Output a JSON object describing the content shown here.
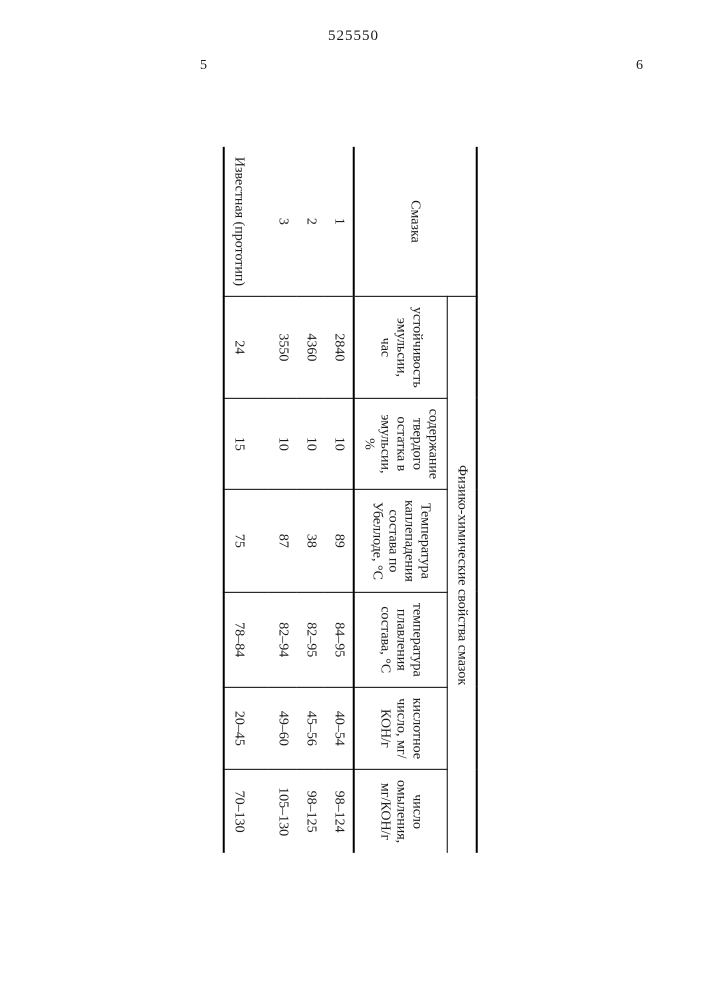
{
  "meta": {
    "doc_number": "525550",
    "col_left": "5",
    "col_right": "6"
  },
  "style": {
    "background_color": "#ffffff",
    "text_color": "#1a1a1a",
    "rule_color": "#000000",
    "font_family": "Times New Roman",
    "body_fontsize_pt": 11,
    "header_fontsize_pt": 11,
    "rotation_deg": 90
  },
  "table": {
    "type": "table",
    "headers": {
      "sample": "Смазка",
      "group": "Физико-химические свойства смазок",
      "stability": "устойчивость эмульсии, час",
      "solid_residue": "содержание твердого остатка в эмульсии, %",
      "dropping_point": "Температура каплепадения состава по Убеллоде, °C",
      "melting_point": "температура плавления состава, °C",
      "acid_number": "кислотное число, мг/КОН/г",
      "sapon_number": "число омыления, мг/КОН/г"
    },
    "columns": [
      "sample",
      "stability",
      "solid_residue",
      "dropping_point",
      "melting_point",
      "acid_number",
      "sapon_number"
    ],
    "rows": [
      {
        "sample": "1",
        "stability": "2840",
        "solid_residue": "10",
        "dropping_point": "89",
        "melting_point": "84–95",
        "acid_number": "40–54",
        "sapon_number": "98–124"
      },
      {
        "sample": "2",
        "stability": "4360",
        "solid_residue": "10",
        "dropping_point": "38",
        "melting_point": "82–95",
        "acid_number": "45–56",
        "sapon_number": "98–125"
      },
      {
        "sample": "3",
        "stability": "3550",
        "solid_residue": "10",
        "dropping_point": "87",
        "melting_point": "82–94",
        "acid_number": "49–60",
        "sapon_number": "105–130"
      },
      {
        "sample": "Известная (прототип)",
        "stability": "24",
        "solid_residue": "15",
        "dropping_point": "75",
        "melting_point": "78–84",
        "acid_number": "20–45",
        "sapon_number": "70–130"
      }
    ]
  }
}
